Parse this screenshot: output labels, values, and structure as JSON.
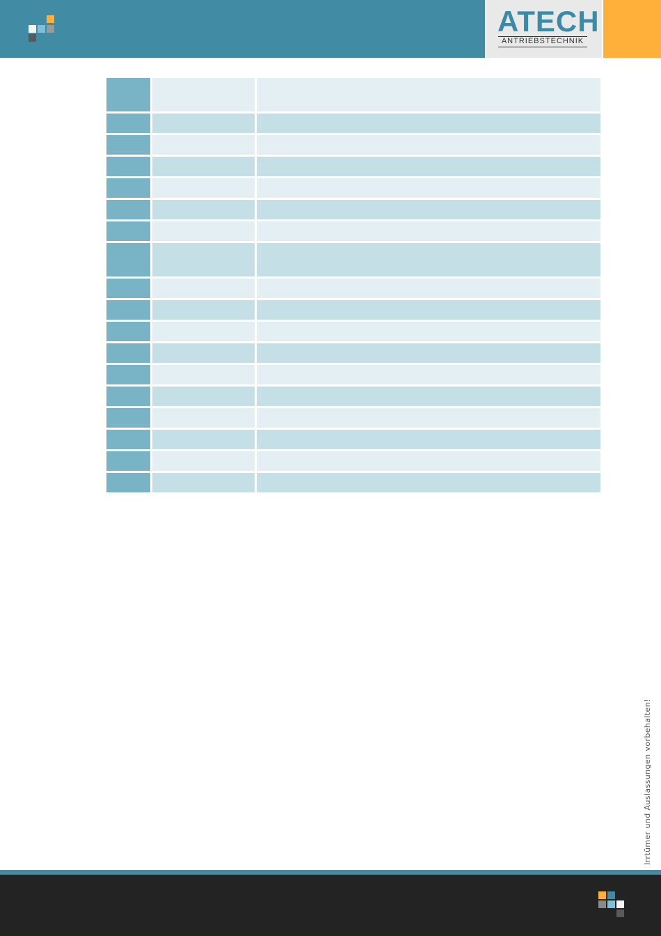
{
  "header": {
    "brand_name": "ATECH",
    "brand_subtitle": "ANTRIEBSTECHNIK",
    "colors": {
      "band": "#418ba4",
      "accent": "#ffb03b",
      "logo_panel": "#e9e9e9"
    },
    "icon": "brand-squares-icon"
  },
  "table": {
    "rows": [
      {
        "cells": [
          "",
          "",
          ""
        ]
      },
      {
        "cells": [
          "",
          "",
          ""
        ]
      },
      {
        "cells": [
          "",
          "",
          ""
        ]
      },
      {
        "cells": [
          "",
          "",
          ""
        ]
      },
      {
        "cells": [
          "",
          "",
          ""
        ]
      },
      {
        "cells": [
          "",
          "",
          ""
        ]
      },
      {
        "cells": [
          "",
          "",
          ""
        ]
      },
      {
        "cells": [
          "",
          "",
          ""
        ]
      },
      {
        "cells": [
          "",
          "",
          ""
        ]
      },
      {
        "cells": [
          "",
          "",
          ""
        ]
      },
      {
        "cells": [
          "",
          "",
          ""
        ]
      },
      {
        "cells": [
          "",
          "",
          ""
        ]
      },
      {
        "cells": [
          "",
          "",
          ""
        ]
      },
      {
        "cells": [
          "",
          "",
          ""
        ]
      },
      {
        "cells": [
          "",
          "",
          ""
        ]
      },
      {
        "cells": [
          "",
          "",
          ""
        ]
      },
      {
        "cells": [
          "",
          "",
          ""
        ]
      },
      {
        "cells": [
          "",
          "",
          ""
        ]
      }
    ],
    "colors": {
      "first_column": "#78b4c6",
      "row_light": "#e3eff3",
      "row_dark": "#c5dfe7"
    }
  },
  "side_note": "Irrtümer und Auslassungen vorbehalten!",
  "footer": {
    "colors": {
      "stripe": "#418ba4",
      "band": "#232323"
    },
    "icon": "brand-squares-icon"
  }
}
